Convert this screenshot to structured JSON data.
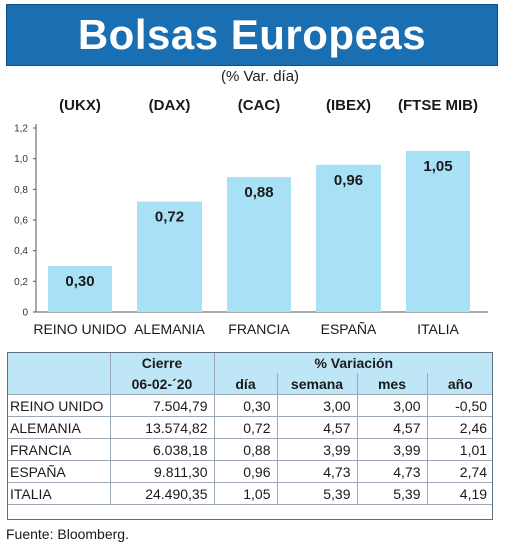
{
  "title": "Bolsas Europeas",
  "subtitle": "(% Var. día)",
  "chart_data": {
    "type": "bar",
    "index_labels": [
      "(UKX)",
      "(DAX)",
      "(CAC)",
      "(IBEX)",
      "(FTSE MIB)"
    ],
    "categories": [
      "REINO UNIDO",
      "ALEMANIA",
      "FRANCIA",
      "ESPAÑA",
      "ITALIA"
    ],
    "values": [
      0.3,
      0.72,
      0.88,
      0.96,
      1.05
    ],
    "value_labels": [
      "0,30",
      "0,72",
      "0,88",
      "0,96",
      "1,05"
    ],
    "ylim": [
      0,
      1.2
    ],
    "yticks": [
      "0",
      "0,2",
      "0,4",
      "0,6",
      "0,8",
      "1,0",
      "1,2"
    ],
    "bar_color": "#a8e0f5",
    "grid": false
  },
  "table": {
    "cierre_header": "Cierre",
    "variacion_header": "% Variación",
    "date_header": "06-02-´20",
    "col_headers": [
      "día",
      "semana",
      "mes",
      "año"
    ],
    "rows": [
      {
        "name": "REINO UNIDO",
        "cierre": "7.504,79",
        "dia": "0,30",
        "semana": "3,00",
        "mes": "3,00",
        "anio": "-0,50"
      },
      {
        "name": "ALEMANIA",
        "cierre": "13.574,82",
        "dia": "0,72",
        "semana": "4,57",
        "mes": "4,57",
        "anio": "2,46"
      },
      {
        "name": "FRANCIA",
        "cierre": "6.038,18",
        "dia": "0,88",
        "semana": "3,99",
        "mes": "3,99",
        "anio": "1,01"
      },
      {
        "name": "ESPAÑA",
        "cierre": "9.811,30",
        "dia": "0,96",
        "semana": "4,73",
        "mes": "4,73",
        "anio": "2,74"
      },
      {
        "name": "ITALIA",
        "cierre": "24.490,35",
        "dia": "1,05",
        "semana": "5,39",
        "mes": "5,39",
        "anio": "4,19"
      }
    ]
  },
  "source": "Fuente: Bloomberg.",
  "colors": {
    "banner": "#1a6fb3",
    "header_fill": "#bfe6f7",
    "bar": "#a8e0f5"
  }
}
